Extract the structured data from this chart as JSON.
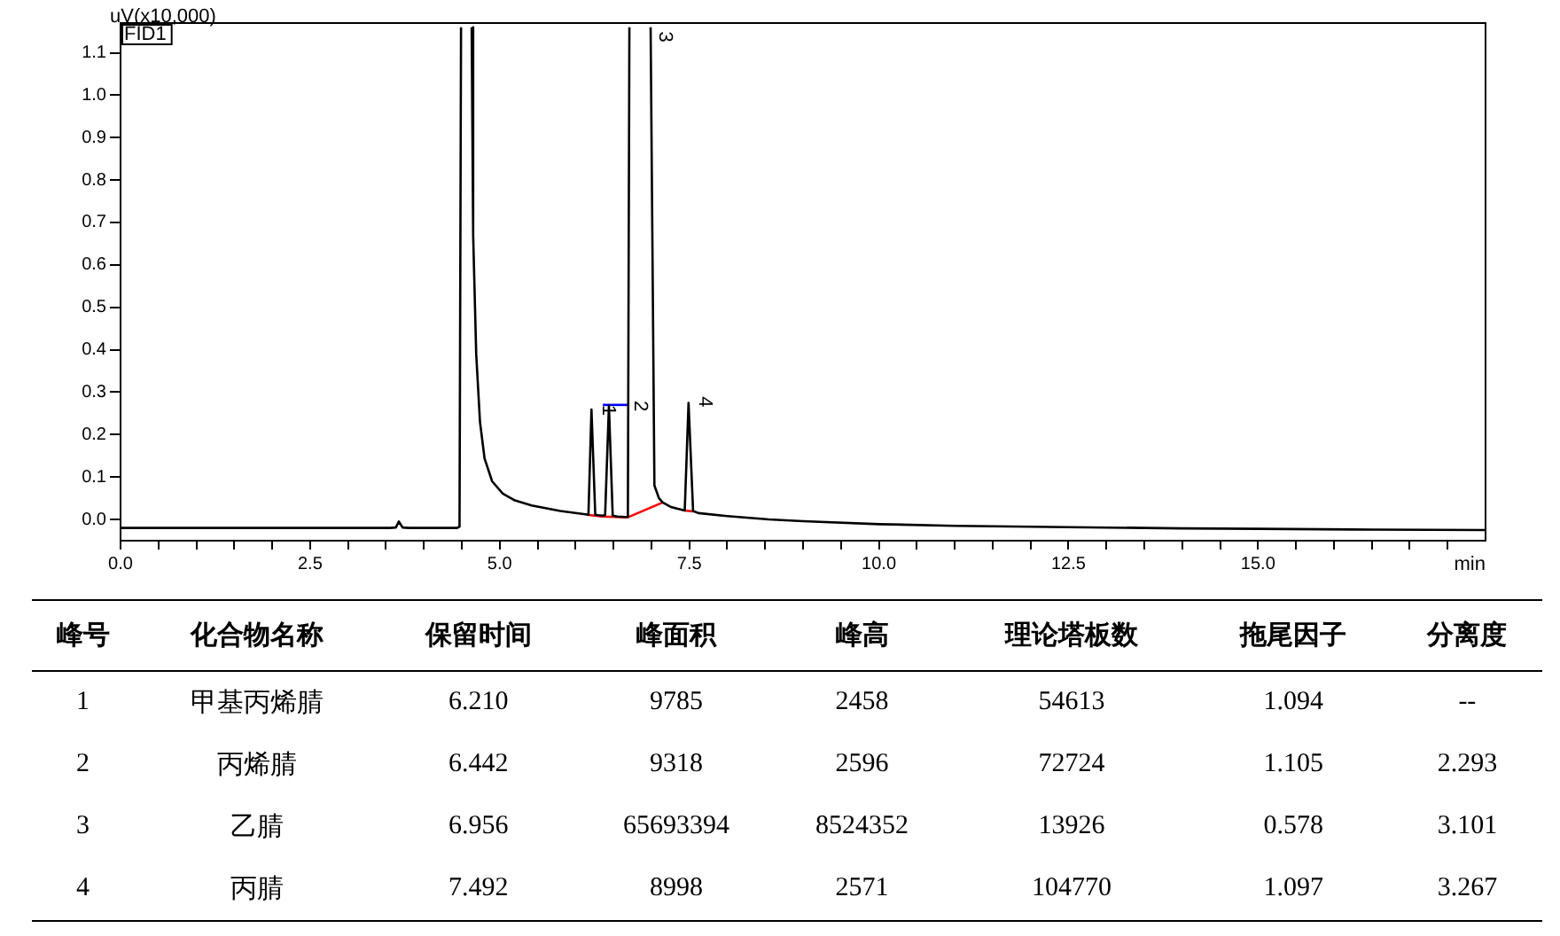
{
  "chart_data": {
    "type": "line",
    "ylabel": "uV(x10,000)",
    "xlabel": "min",
    "xlim": [
      0,
      18
    ],
    "ylim": [
      -0.05,
      1.17
    ],
    "xticks": [
      {
        "value": 0,
        "label": "0.0"
      },
      {
        "value": 0.5,
        "label": null
      },
      {
        "value": 1,
        "label": null
      },
      {
        "value": 1.5,
        "label": null
      },
      {
        "value": 2,
        "label": null
      },
      {
        "value": 2.5,
        "label": "2.5"
      },
      {
        "value": 3,
        "label": null
      },
      {
        "value": 3.5,
        "label": null
      },
      {
        "value": 4,
        "label": null
      },
      {
        "value": 4.5,
        "label": null
      },
      {
        "value": 5,
        "label": "5.0"
      },
      {
        "value": 5.5,
        "label": null
      },
      {
        "value": 6,
        "label": null
      },
      {
        "value": 6.5,
        "label": null
      },
      {
        "value": 7,
        "label": null
      },
      {
        "value": 7.5,
        "label": "7.5"
      },
      {
        "value": 8,
        "label": null
      },
      {
        "value": 8.5,
        "label": null
      },
      {
        "value": 9,
        "label": null
      },
      {
        "value": 9.5,
        "label": null
      },
      {
        "value": 10,
        "label": "10.0"
      },
      {
        "value": 10.5,
        "label": null
      },
      {
        "value": 11,
        "label": null
      },
      {
        "value": 11.5,
        "label": null
      },
      {
        "value": 12,
        "label": null
      },
      {
        "value": 12.5,
        "label": "12.5"
      },
      {
        "value": 13,
        "label": null
      },
      {
        "value": 13.5,
        "label": null
      },
      {
        "value": 14,
        "label": null
      },
      {
        "value": 14.5,
        "label": null
      },
      {
        "value": 15,
        "label": "15.0"
      },
      {
        "value": 15.5,
        "label": null
      },
      {
        "value": 16,
        "label": null
      },
      {
        "value": 16.5,
        "label": null
      },
      {
        "value": 17,
        "label": null
      },
      {
        "value": 17.5,
        "label": null
      }
    ],
    "yticks": [
      {
        "value": 0,
        "label": "0.0"
      },
      {
        "value": 0.1,
        "label": "0.1"
      },
      {
        "value": 0.2,
        "label": "0.2"
      },
      {
        "value": 0.3,
        "label": "0.3"
      },
      {
        "value": 0.4,
        "label": "0.4"
      },
      {
        "value": 0.5,
        "label": "0.5"
      },
      {
        "value": 0.6,
        "label": "0.6"
      },
      {
        "value": 0.7,
        "label": "0.7"
      },
      {
        "value": 0.8,
        "label": "0.8"
      },
      {
        "value": 0.9,
        "label": "0.9"
      },
      {
        "value": 1,
        "label": "1.0"
      },
      {
        "value": 1.1,
        "label": "1.1"
      }
    ],
    "grid": false,
    "legend": false,
    "marker": "none",
    "line_style": "solid",
    "series": [
      {
        "color": "#000000",
        "x": [
          0,
          3.55,
          3.63,
          3.67,
          3.72,
          3.8,
          4.44,
          4.47,
          4.49,
          4.55,
          4.63,
          4.65,
          4.69,
          4.74,
          4.8,
          4.9,
          5.04,
          5.2,
          5.42,
          5.8,
          6.13,
          6.17,
          6.21,
          6.26,
          6.3,
          6.35,
          6.39,
          6.44,
          6.49,
          6.55,
          6.65,
          6.69,
          6.71,
          6.85,
          6.99,
          7.04,
          7.1,
          7.15,
          7.25,
          7.35,
          7.44,
          7.49,
          7.55,
          7.62,
          8,
          8.55,
          9,
          10,
          11,
          12.5,
          14,
          15,
          16.5,
          18
        ],
        "values": [
          -0.02,
          -0.02,
          -0.019,
          -0.005,
          -0.019,
          -0.02,
          -0.02,
          -0.017,
          1.16,
          null,
          1.16,
          0.67,
          0.39,
          0.23,
          0.144,
          0.09,
          0.061,
          0.045,
          0.033,
          0.02,
          0.012,
          0.011,
          0.259,
          0.011,
          0.01,
          0.009,
          0.01,
          0.268,
          0.009,
          0.007,
          0.006,
          0.006,
          1.16,
          null,
          1.16,
          0.08,
          0.05,
          0.04,
          0.03,
          0.025,
          0.021,
          0.275,
          0.02,
          0.015,
          0.008,
          0.0,
          -0.004,
          -0.011,
          -0.015,
          -0.018,
          -0.021,
          -0.022,
          -0.024,
          -0.025
        ]
      },
      {
        "color": "#ff0000",
        "x": [
          6.15,
          6.35,
          6.69,
          7.15,
          7.3,
          7.44,
          7.56
        ],
        "values": [
          0.011,
          0.007,
          0.005,
          0.04,
          null,
          0.021,
          0.019
        ]
      },
      {
        "color": "#0000ff",
        "x": [
          6.36,
          6.7
        ],
        "values": [
          0.27,
          0.27
        ]
      }
    ],
    "annotations": [
      {
        "text": "1",
        "x": 6.3,
        "y": 0.27
      },
      {
        "text": "2",
        "x": 6.72,
        "y": 0.28
      },
      {
        "text": "3",
        "x": 7.05,
        "y": 1.15
      },
      {
        "text": "4",
        "x": 7.57,
        "y": 0.29
      },
      "FID1",
      "峰号",
      "化合物名称",
      "保留时间",
      "峰面积",
      "峰高",
      "理论塔板数",
      "拖尾因子",
      "分离度",
      "1",
      "甲基丙烯腈",
      "6.210",
      "9785",
      "2458",
      "54613",
      "1.094",
      "--",
      "2",
      "丙烯腈",
      "6.442",
      "9318",
      "2596",
      "72724",
      "1.105",
      "2.293",
      "3",
      "乙腈",
      "6.956",
      "65693394",
      "8524352",
      "13926",
      "0.578",
      "3.101",
      "4",
      "丙腈",
      "7.492",
      "8998",
      "2571",
      "104770",
      "1.097",
      "3.267"
    ]
  }
}
